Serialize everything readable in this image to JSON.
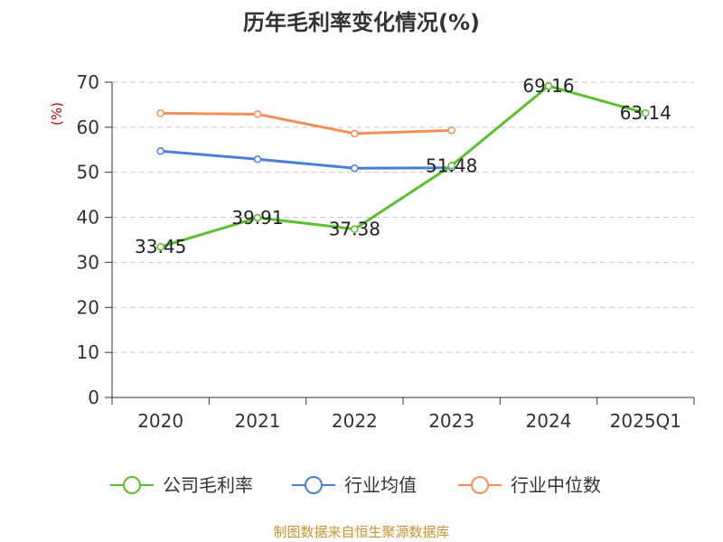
{
  "chart_data": {
    "type": "line",
    "title": "历年毛利率变化情况(%)",
    "ylabel": "(%)",
    "categories": [
      "2020",
      "2021",
      "2022",
      "2023",
      "2024",
      "2025Q1"
    ],
    "ylim": [
      0,
      70
    ],
    "yticks": [
      0,
      10,
      20,
      30,
      40,
      50,
      60,
      70
    ],
    "grid": true,
    "legend_position": "bottom",
    "series": [
      {
        "name": "公司毛利率",
        "color": "#5bbf2e",
        "values": [
          33.45,
          39.91,
          37.38,
          51.48,
          69.16,
          63.14
        ],
        "labels": [
          "33.45",
          "39.91",
          "37.38",
          "51.48",
          "69.16",
          "63.14"
        ]
      },
      {
        "name": "行业均值",
        "color": "#4a7fd6",
        "values": [
          54.7,
          52.9,
          50.9,
          51.0,
          null,
          null
        ]
      },
      {
        "name": "行业中位数",
        "color": "#f48f5a",
        "values": [
          63.1,
          62.9,
          58.6,
          59.3,
          null,
          null
        ]
      }
    ]
  },
  "source": "制图数据来自恒生聚源数据库"
}
